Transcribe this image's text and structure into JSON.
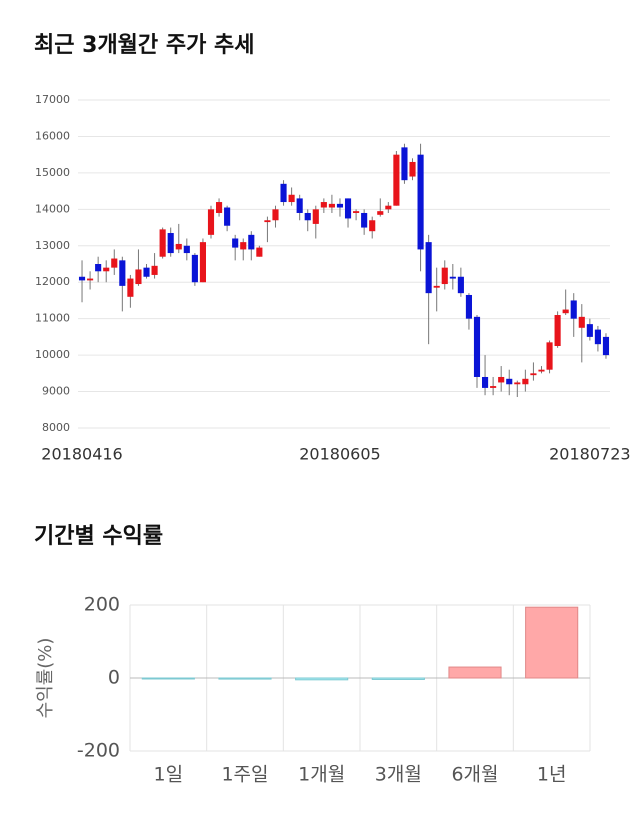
{
  "chart_data": [
    {
      "type": "candlestick",
      "title": "최근 3개월간 주가 추세",
      "categories": [
        "20180416",
        null,
        null,
        null,
        null,
        null,
        null,
        null,
        null,
        null,
        null,
        null,
        null,
        null,
        null,
        null,
        null,
        null,
        null,
        null,
        null,
        null,
        null,
        null,
        null,
        null,
        null,
        null,
        null,
        null,
        null,
        null,
        "20180605",
        null,
        null,
        null,
        null,
        null,
        null,
        null,
        null,
        null,
        null,
        null,
        null,
        null,
        null,
        null,
        null,
        null,
        null,
        null,
        null,
        null,
        null,
        null,
        null,
        null,
        null,
        null,
        null,
        null,
        null,
        "20180723",
        null,
        null
      ],
      "open": [
        12150,
        12050,
        12500,
        12300,
        12400,
        12600,
        11600,
        11950,
        12400,
        12200,
        12700,
        13350,
        12900,
        13000,
        12750,
        12000,
        13300,
        13900,
        14050,
        13200,
        12900,
        13300,
        12700,
        13650,
        13700,
        14700,
        14200,
        14300,
        13900,
        13600,
        14050,
        14050,
        14150,
        14300,
        13900,
        13900,
        13400,
        13850,
        14000,
        14100,
        15700,
        14900,
        15500,
        13100,
        11850,
        11950,
        12150,
        12150,
        11650,
        11050,
        9400,
        9100,
        9250,
        9350,
        9200,
        9200,
        9450,
        9550,
        9600,
        10250,
        11150,
        11500,
        10750,
        10850,
        10700,
        10500
      ],
      "high": [
        12600,
        12300,
        12700,
        12600,
        12900,
        12700,
        12200,
        12900,
        12500,
        12800,
        13500,
        13500,
        13600,
        13200,
        12800,
        13200,
        14100,
        14300,
        14100,
        13300,
        13200,
        13400,
        13000,
        13800,
        14100,
        14800,
        14600,
        14400,
        14000,
        14100,
        14300,
        14400,
        14300,
        14300,
        14000,
        14000,
        13800,
        14300,
        14200,
        15600,
        15800,
        15400,
        15800,
        13300,
        12400,
        12600,
        12500,
        12400,
        11700,
        11100,
        10000,
        9400,
        9700,
        9600,
        9300,
        9600,
        9800,
        9700,
        10400,
        11200,
        11800,
        11700,
        11400,
        11000,
        10800,
        10600
      ],
      "low": [
        11450,
        11800,
        12000,
        12000,
        12200,
        11200,
        11300,
        11900,
        12100,
        12100,
        12650,
        12700,
        12800,
        12600,
        11900,
        12000,
        13200,
        13800,
        13400,
        12600,
        12600,
        12600,
        12700,
        13100,
        13500,
        14100,
        14100,
        13700,
        13400,
        13200,
        13900,
        13900,
        13800,
        13500,
        13700,
        13300,
        13200,
        13800,
        13900,
        14100,
        14700,
        14800,
        12300,
        10300,
        11200,
        11800,
        11800,
        11600,
        10700,
        9100,
        8900,
        8900,
        9000,
        8900,
        8850,
        9000,
        9300,
        9500,
        9500,
        10200,
        11100,
        10500,
        9800,
        10400,
        10100,
        9900
      ],
      "close": [
        12050,
        12100,
        12300,
        12400,
        12650,
        11900,
        12100,
        12350,
        12150,
        12450,
        13450,
        12800,
        13050,
        12800,
        12000,
        13100,
        14000,
        14200,
        13550,
        12950,
        13100,
        12900,
        12950,
        13700,
        14000,
        14200,
        14400,
        13900,
        13700,
        14000,
        14200,
        14150,
        14050,
        13750,
        13950,
        13500,
        13700,
        13950,
        14100,
        15500,
        14800,
        15300,
        12900,
        11700,
        11900,
        12400,
        12100,
        11700,
        11000,
        9400,
        9100,
        9150,
        9400,
        9200,
        9250,
        9350,
        9500,
        9600,
        10350,
        11100,
        11250,
        11000,
        11050,
        10500,
        10300,
        10000
      ],
      "up_color": "#e8141b",
      "down_color": "#0a14d6",
      "ylim": [
        8000,
        17000
      ],
      "yticks": [
        8000,
        9000,
        10000,
        11000,
        12000,
        13000,
        14000,
        15000,
        16000,
        17000
      ],
      "grid": true
    },
    {
      "type": "bar",
      "title": "기간별 수익률",
      "y_label": "수익률(%)",
      "categories": [
        "1일",
        "1주일",
        "1개월",
        "3개월",
        "6개월",
        "1년"
      ],
      "values": [
        -1,
        -3,
        -5,
        -4,
        30,
        194
      ],
      "positive_color": "#ffa8a8",
      "negative_color": "#aeeef5",
      "ylim": [
        -200,
        200
      ],
      "yticks": [
        -200,
        0,
        200
      ],
      "grid": true
    }
  ]
}
